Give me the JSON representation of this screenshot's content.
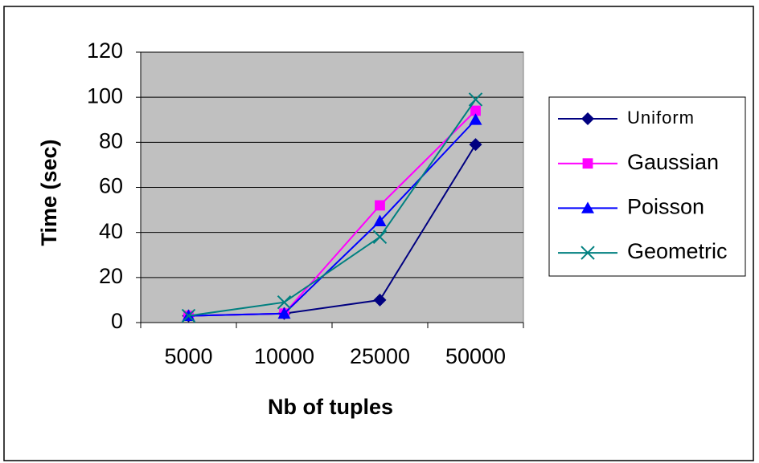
{
  "chart_data": {
    "type": "line",
    "x_label": "Nb of tuples",
    "y_label": "Time (sec)",
    "categories": [
      "5000",
      "10000",
      "25000",
      "50000"
    ],
    "series": [
      {
        "name": "Uniform",
        "color": "#000080",
        "marker": "diamond",
        "values": [
          3,
          4,
          10,
          79
        ]
      },
      {
        "name": "Gaussian",
        "color": "#ff00ff",
        "marker": "square",
        "values": [
          3,
          4,
          52,
          94
        ]
      },
      {
        "name": "Poisson",
        "color": "#0000ff",
        "marker": "triangle",
        "values": [
          3,
          4,
          45,
          90
        ]
      },
      {
        "name": "Geometric",
        "color": "#008080",
        "marker": "x",
        "values": [
          3,
          9,
          38,
          99
        ]
      }
    ],
    "ylim": [
      0,
      120
    ],
    "yticks": [
      0,
      20,
      40,
      60,
      80,
      100,
      120
    ],
    "grid": true,
    "plot_background": "#c0c0c0",
    "legend": "right"
  }
}
